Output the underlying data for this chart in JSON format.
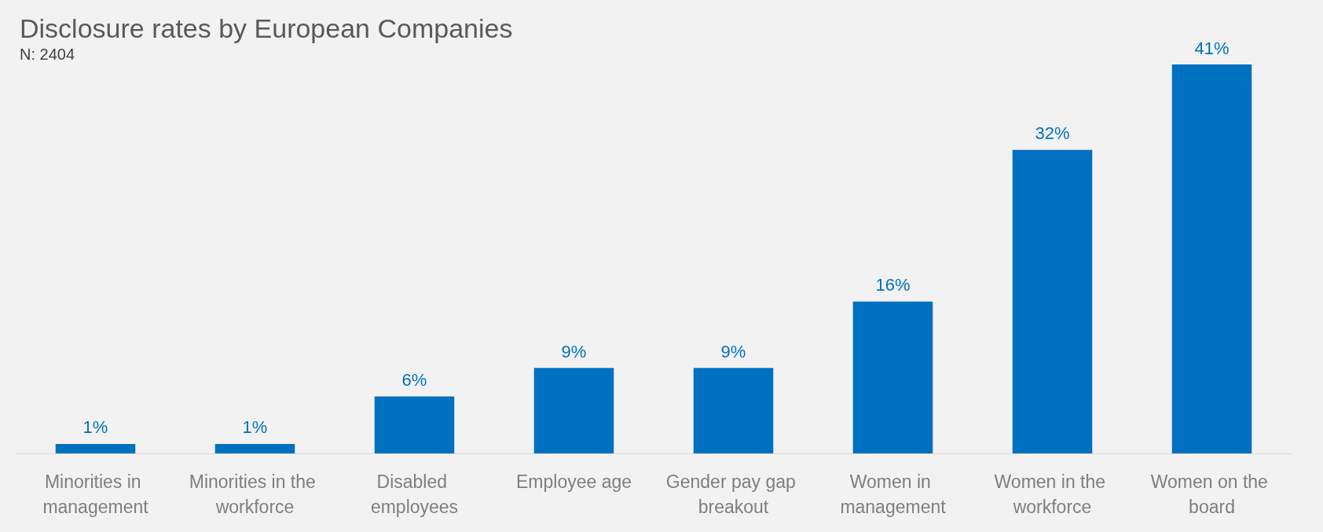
{
  "chart_data": {
    "type": "bar",
    "title": "Disclosure rates by European Companies",
    "subtitle": "N: 2404",
    "categories": [
      "Minorities in management",
      "Minorities in the workforce",
      "Disabled employees",
      "Employee age",
      "Gender pay gap breakout",
      "Women in management",
      "Women in the workforce",
      "Women on the board"
    ],
    "values": [
      1,
      1,
      6,
      9,
      9,
      16,
      32,
      41
    ],
    "value_labels": [
      "1%",
      "1%",
      "6%",
      "9%",
      "9%",
      "16%",
      "32%",
      "41%"
    ],
    "color": "#0070c0",
    "grid": false
  }
}
